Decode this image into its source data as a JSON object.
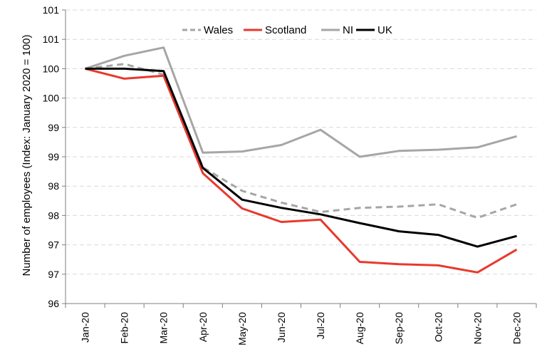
{
  "chart_data": {
    "type": "line",
    "title": "",
    "xlabel": "",
    "ylabel": "Number of employees (Index: January 2020 = 100)",
    "categories": [
      "Jan-20",
      "Feb-20",
      "Mar-20",
      "Apr-20",
      "May-20",
      "Jun-20",
      "Jul-20",
      "Aug-20",
      "Sep-20",
      "Oct-20",
      "Nov-20",
      "Dec-20"
    ],
    "ytick_values": [
      96,
      96.5,
      97,
      97.5,
      98,
      98.5,
      99,
      99.5,
      100,
      100.5,
      101
    ],
    "ytick_labels": [
      "96",
      "97",
      "97",
      "98",
      "98",
      "99",
      "99",
      "100",
      "100",
      "101",
      "101"
    ],
    "ylim": [
      96,
      101
    ],
    "grid": true,
    "legend_position": "top-center",
    "series": [
      {
        "name": "Wales",
        "color": "#a6a6a6",
        "dash": "dashed",
        "values": [
          100,
          100.08,
          99.9,
          98.32,
          97.92,
          97.72,
          97.56,
          97.63,
          97.65,
          97.69,
          97.46,
          97.69
        ]
      },
      {
        "name": "Scotland",
        "color": "#e8392d",
        "dash": "solid",
        "values": [
          100,
          99.83,
          99.88,
          98.22,
          97.62,
          97.39,
          97.43,
          96.71,
          96.67,
          96.65,
          96.53,
          96.92
        ]
      },
      {
        "name": "NI",
        "color": "#a6a6a6",
        "dash": "solid",
        "values": [
          100,
          100.22,
          100.36,
          98.57,
          98.59,
          98.7,
          98.96,
          98.5,
          98.6,
          98.62,
          98.66,
          98.85
        ]
      },
      {
        "name": "UK",
        "color": "#000000",
        "dash": "solid",
        "values": [
          100,
          100,
          99.96,
          98.31,
          97.77,
          97.63,
          97.52,
          97.37,
          97.23,
          97.17,
          96.97,
          97.15
        ]
      }
    ]
  }
}
